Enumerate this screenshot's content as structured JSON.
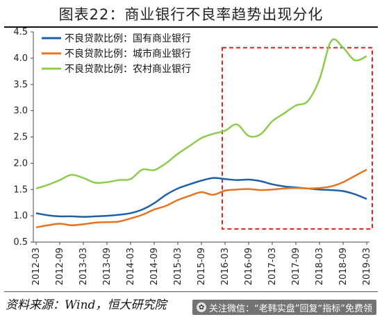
{
  "figure": {
    "title": "图表22：商业银行不良率趋势出现分化",
    "source": "资料来源：Wind，恒大研究院",
    "watermark": "关注微信：“老韩实盘”回复“指标”免费领"
  },
  "colors": {
    "state_owned": "#1f5fa8",
    "city": "#e8731e",
    "rural": "#8ccc4c",
    "highlight_box": "#e02020"
  },
  "chart_data": {
    "type": "line",
    "title": "图表22：商业银行不良率趋势出现分化",
    "xlabel": "",
    "ylabel": "",
    "ylim": [
      0.5,
      4.5
    ],
    "yticks": [
      "0.5",
      "1.0",
      "1.5",
      "2.0",
      "2.5",
      "3.0",
      "3.5",
      "4.0",
      "4.5"
    ],
    "x": [
      "2012-03",
      "2012-06",
      "2012-09",
      "2012-12",
      "2013-03",
      "2013-06",
      "2013-09",
      "2013-12",
      "2014-03",
      "2014-06",
      "2014-09",
      "2014-12",
      "2015-03",
      "2015-06",
      "2015-09",
      "2015-12",
      "2016-03",
      "2016-06",
      "2016-09",
      "2016-12",
      "2017-03",
      "2017-06",
      "2017-09",
      "2017-12",
      "2018-03",
      "2018-06",
      "2018-09",
      "2018-12",
      "2019-03"
    ],
    "xticks": [
      "2012-03",
      "2012-09",
      "2013-03",
      "2013-09",
      "2014-03",
      "2014-09",
      "2015-03",
      "2015-09",
      "2016-03",
      "2016-09",
      "2017-03",
      "2017-09",
      "2018-03",
      "2018-09",
      "2019-03"
    ],
    "series": [
      {
        "name": "不良贷款比例：国有商业银行",
        "color_key": "state_owned",
        "values": [
          1.05,
          1.01,
          0.99,
          0.99,
          0.98,
          0.99,
          1.0,
          1.02,
          1.05,
          1.12,
          1.24,
          1.4,
          1.52,
          1.6,
          1.67,
          1.72,
          1.7,
          1.68,
          1.69,
          1.66,
          1.6,
          1.56,
          1.54,
          1.52,
          1.5,
          1.49,
          1.47,
          1.41,
          1.32
        ]
      },
      {
        "name": "不良贷款比例：城市商业银行",
        "color_key": "city",
        "values": [
          0.78,
          0.82,
          0.85,
          0.82,
          0.84,
          0.87,
          0.88,
          0.89,
          0.95,
          1.02,
          1.12,
          1.19,
          1.3,
          1.38,
          1.45,
          1.4,
          1.48,
          1.5,
          1.51,
          1.49,
          1.5,
          1.52,
          1.53,
          1.52,
          1.53,
          1.56,
          1.64,
          1.76,
          1.88
        ]
      },
      {
        "name": "不良贷款比例：农村商业银行",
        "color_key": "rural",
        "values": [
          1.52,
          1.59,
          1.68,
          1.78,
          1.72,
          1.63,
          1.64,
          1.68,
          1.7,
          1.88,
          1.87,
          2.0,
          2.18,
          2.33,
          2.48,
          2.56,
          2.62,
          2.74,
          2.52,
          2.55,
          2.8,
          2.95,
          3.1,
          3.18,
          3.6,
          4.33,
          4.2,
          3.96,
          4.04
        ]
      }
    ],
    "highlight": {
      "from": "2016-03",
      "to": "2019-03",
      "ymin": 0.75,
      "ymax": 4.2
    },
    "legend": "top-left",
    "grid": false
  }
}
